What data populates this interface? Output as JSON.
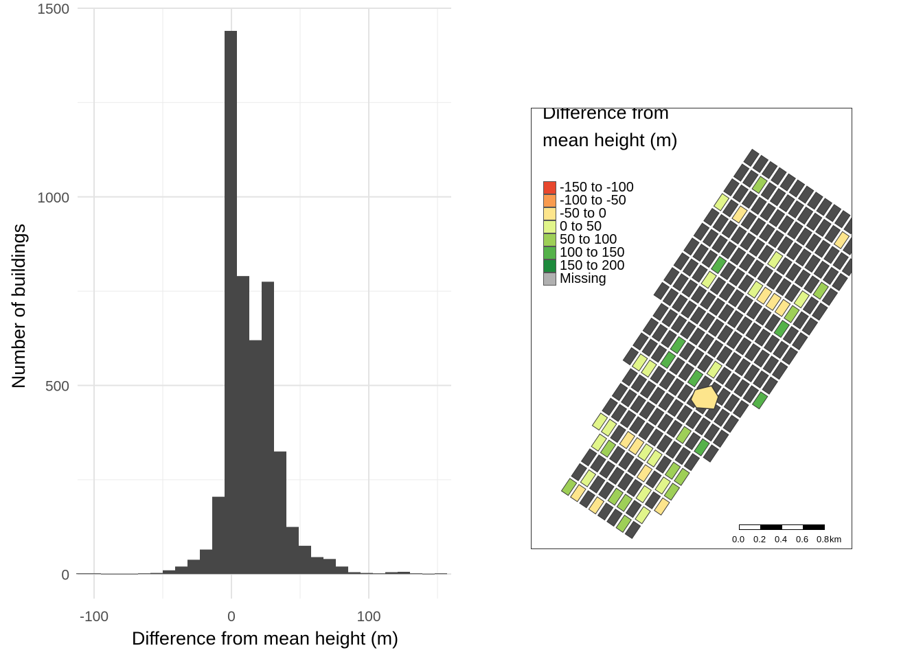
{
  "chart_data": {
    "type": "bar",
    "xlabel": "Difference from mean height (m)",
    "ylabel": "Number of buildings",
    "xlim": [
      -112,
      160
    ],
    "ylim": [
      -65,
      1500
    ],
    "x_ticks": [
      -100,
      0,
      100
    ],
    "x_tick_labels": [
      "-100",
      "0",
      "100"
    ],
    "y_ticks": [
      0,
      500,
      1000,
      1500
    ],
    "y_tick_labels": [
      "0",
      "500",
      "1000",
      "1500"
    ],
    "grid": true,
    "bin_width": 9,
    "bin_starts": [
      -113,
      -104,
      -95,
      -86,
      -77,
      -68,
      -59,
      -50,
      -41,
      -32,
      -23,
      -14,
      -5,
      4,
      13,
      22,
      31,
      40,
      49,
      58,
      67,
      76,
      85,
      94,
      103,
      112,
      121,
      130,
      139,
      148
    ],
    "values": [
      2,
      2,
      1,
      1,
      1,
      2,
      3,
      10,
      20,
      38,
      65,
      205,
      1440,
      790,
      620,
      775,
      325,
      125,
      75,
      45,
      40,
      20,
      5,
      3,
      2,
      5,
      6,
      2,
      1,
      2
    ],
    "bar_color": "#474747"
  },
  "map": {
    "legend_title": "Difference from mean height (m)",
    "legend": [
      {
        "label": "-150 to -100",
        "color": "#e8472d"
      },
      {
        "label": "-100 to -50",
        "color": "#f99b4f"
      },
      {
        "label": "-50 to 0",
        "color": "#fde58c"
      },
      {
        "label": "0 to 50",
        "color": "#e1f58a"
      },
      {
        "label": "50 to 100",
        "color": "#9ecf57"
      },
      {
        "label": "100 to 150",
        "color": "#55b24a"
      },
      {
        "label": "150 to 200",
        "color": "#1d8a3c"
      },
      {
        "label": "Missing",
        "color": "#b0b0b0"
      }
    ],
    "building_color": "#4d4d4d",
    "scale_ticks": [
      "0.0",
      "0.2",
      "0.4",
      "0.6",
      "0.8"
    ],
    "scale_unit": "km"
  }
}
